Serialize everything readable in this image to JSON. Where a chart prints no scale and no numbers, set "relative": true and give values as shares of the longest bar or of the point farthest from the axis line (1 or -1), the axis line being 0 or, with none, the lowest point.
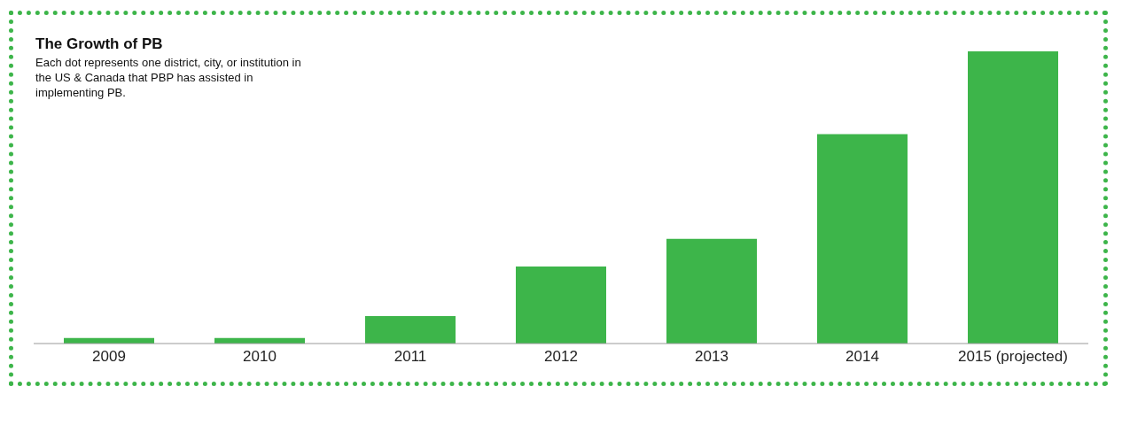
{
  "chart_data": {
    "type": "bar",
    "title": "The Growth of PB",
    "subtitle": "Each dot represents one district, city, or institution in the US & Canada that PBP has assisted in implementing PB.",
    "categories": [
      "2009",
      "2010",
      "2011",
      "2012",
      "2013",
      "2014",
      "2015 (projected)"
    ],
    "relative": true,
    "values": [
      0.019,
      0.019,
      0.094,
      0.264,
      0.358,
      0.717,
      1
    ],
    "color": "#3db54a",
    "grid": false,
    "legend": false
  }
}
